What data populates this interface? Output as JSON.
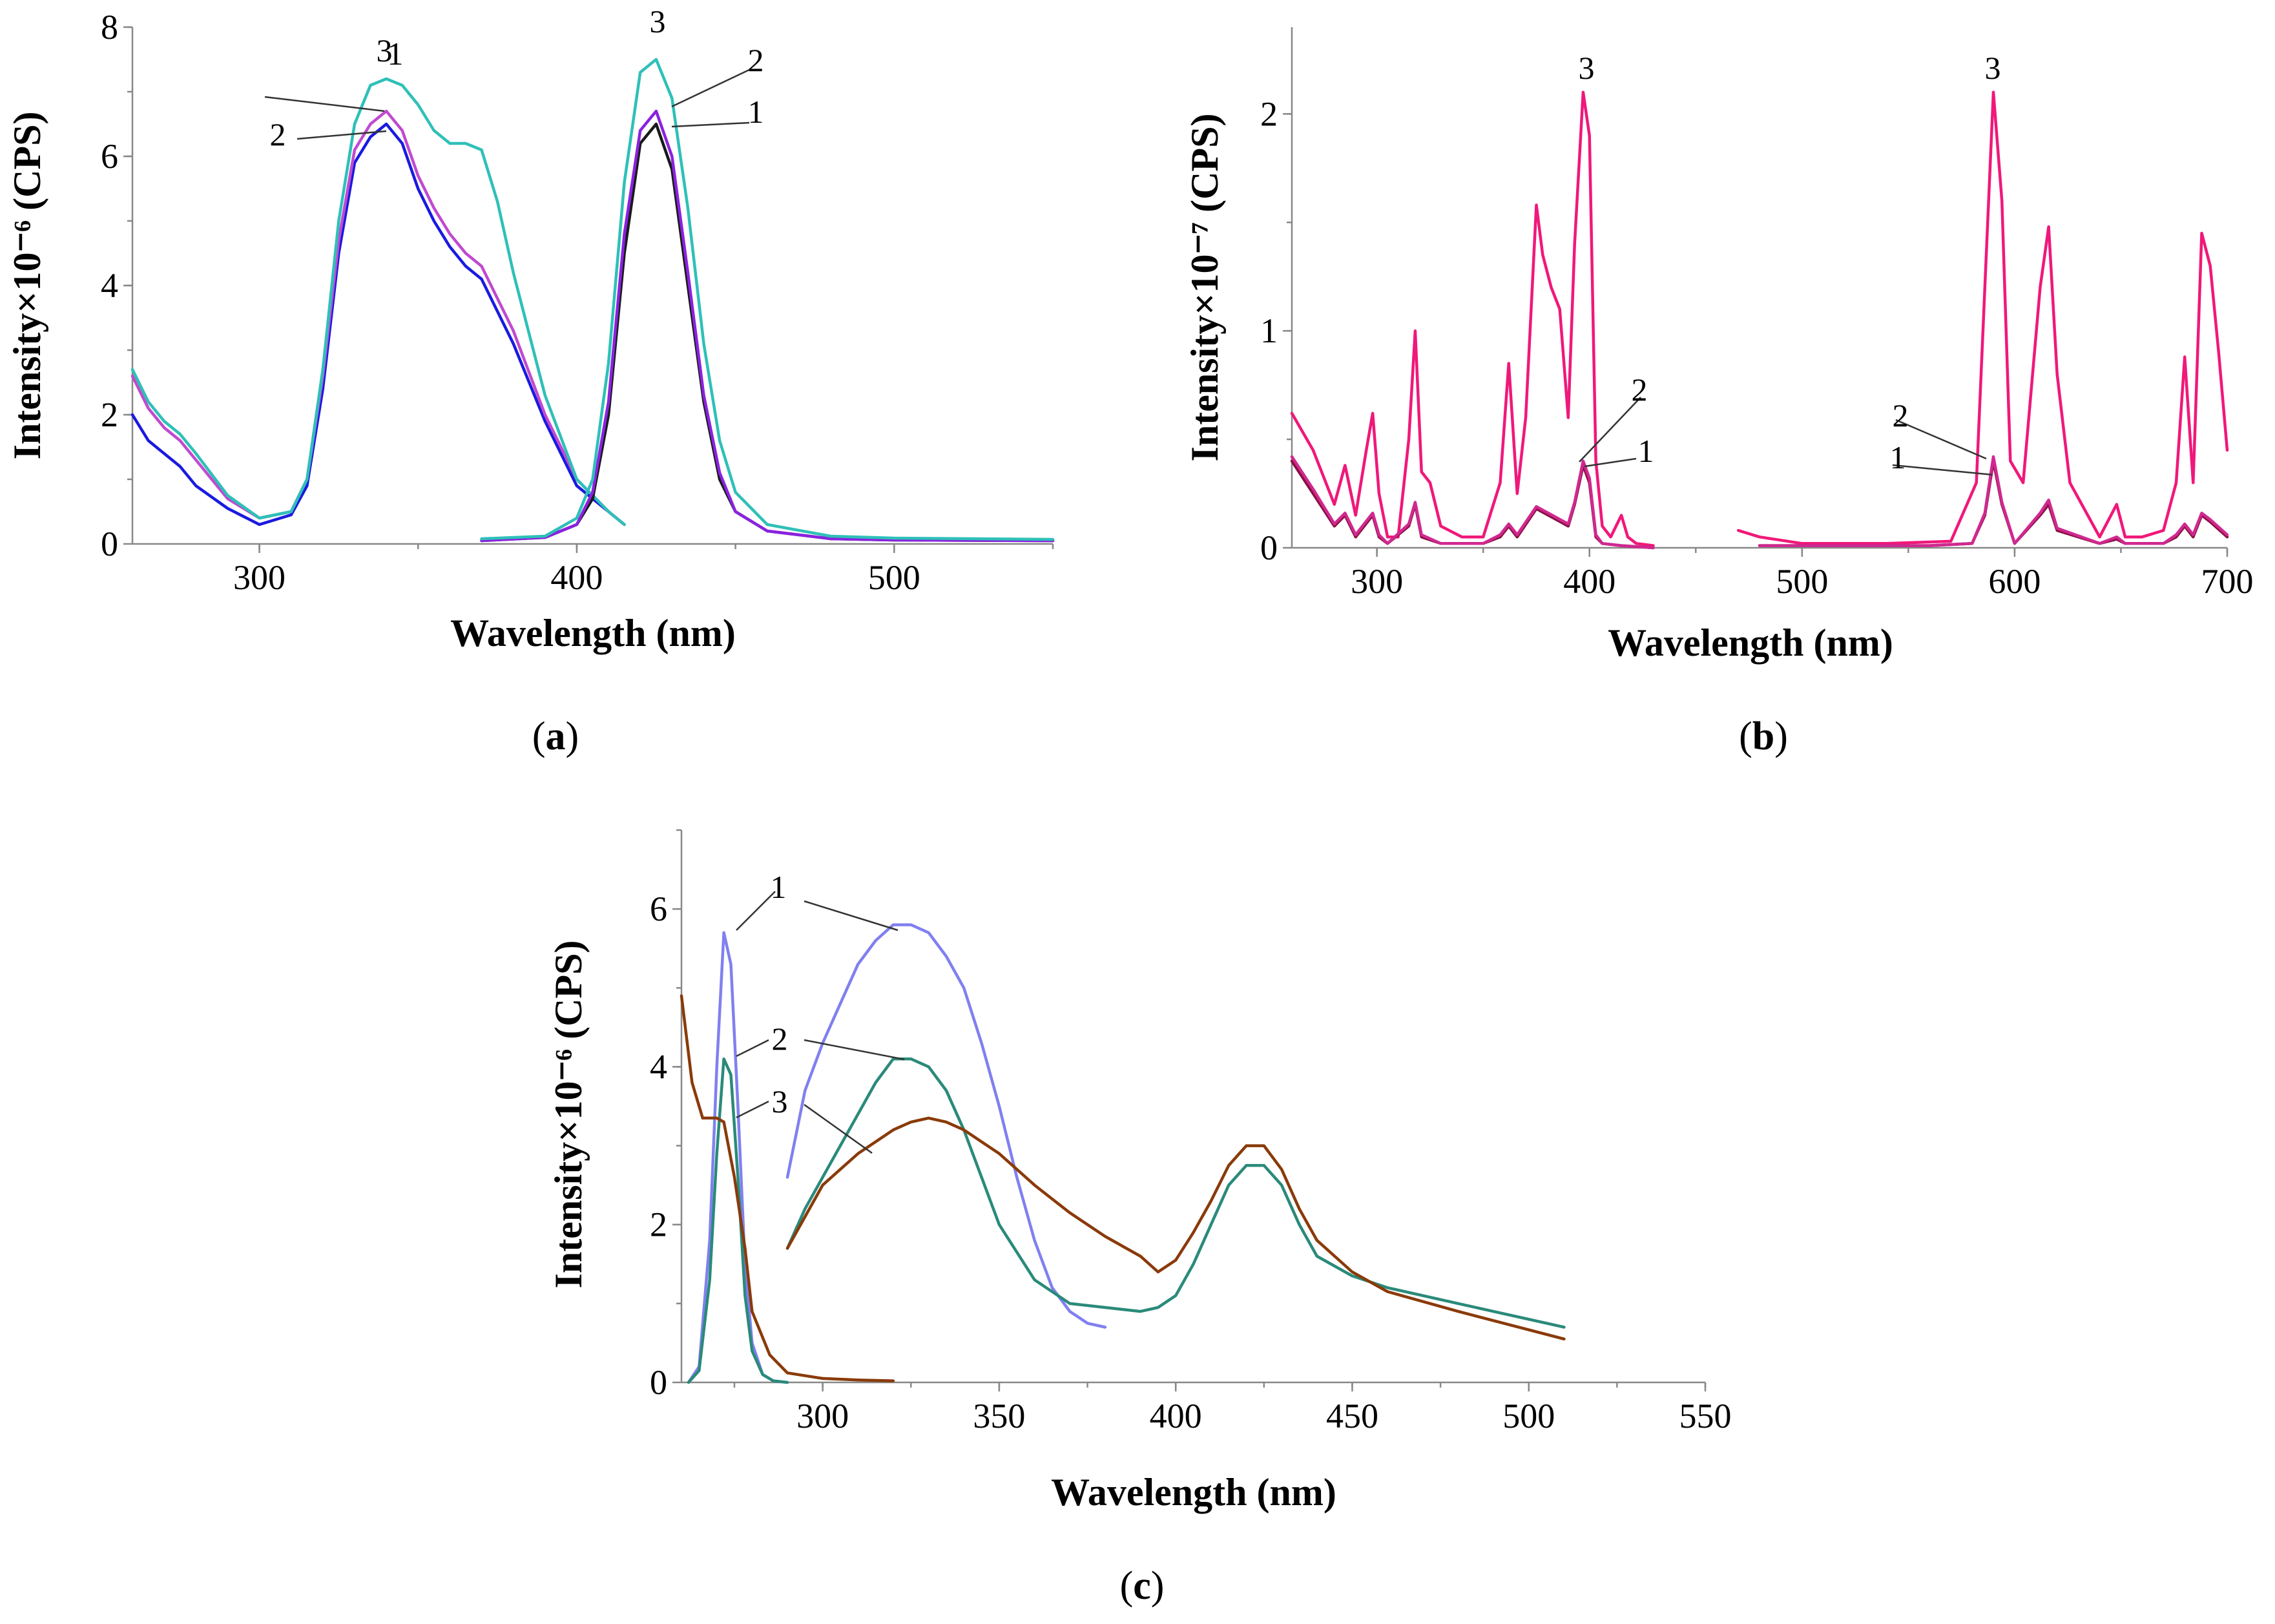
{
  "chart_data": [
    {
      "id": "a",
      "type": "line",
      "panel_label": "a",
      "xlabel": "Wavelength (nm)",
      "ylabel": "Intensity×10⁻⁶ (CPS)",
      "xlim": [
        260,
        550
      ],
      "ylim": [
        0,
        8
      ],
      "xticks": [
        300,
        400,
        500
      ],
      "yticks": [
        0,
        2,
        4,
        6,
        8
      ],
      "grid": false,
      "series": [
        {
          "name": "1",
          "color": "#1a1ae0",
          "x": [
            260,
            265,
            270,
            275,
            280,
            290,
            300,
            310,
            315,
            320,
            325,
            330,
            335,
            340,
            345,
            350,
            355,
            360,
            365,
            370,
            380,
            390,
            400,
            410,
            415
          ],
          "y": [
            2.0,
            1.6,
            1.4,
            1.2,
            0.9,
            0.55,
            0.3,
            0.45,
            0.9,
            2.4,
            4.5,
            5.9,
            6.3,
            6.5,
            6.2,
            5.5,
            5.0,
            4.6,
            4.3,
            4.1,
            3.1,
            1.9,
            0.9,
            0.5,
            0.3
          ]
        },
        {
          "name": "2",
          "color": "#c04ad0",
          "x": [
            260,
            265,
            270,
            275,
            280,
            290,
            300,
            310,
            315,
            320,
            325,
            330,
            335,
            340,
            345,
            350,
            355,
            360,
            365,
            370,
            380,
            390,
            400,
            410,
            415
          ],
          "y": [
            2.6,
            2.1,
            1.8,
            1.6,
            1.3,
            0.7,
            0.4,
            0.5,
            1.0,
            2.6,
            4.7,
            6.1,
            6.5,
            6.7,
            6.4,
            5.7,
            5.2,
            4.8,
            4.5,
            4.3,
            3.3,
            2.0,
            1.0,
            0.5,
            0.3
          ]
        },
        {
          "name": "3",
          "color": "#2ec0b8",
          "x": [
            260,
            265,
            270,
            275,
            280,
            290,
            300,
            310,
            315,
            320,
            325,
            330,
            335,
            340,
            345,
            350,
            355,
            360,
            365,
            370,
            375,
            380,
            390,
            400,
            410,
            415
          ],
          "y": [
            2.7,
            2.2,
            1.9,
            1.7,
            1.4,
            0.75,
            0.4,
            0.5,
            1.0,
            2.7,
            5.0,
            6.5,
            7.1,
            7.2,
            7.1,
            6.8,
            6.4,
            6.2,
            6.2,
            6.1,
            5.3,
            4.2,
            2.3,
            1.0,
            0.5,
            0.3
          ]
        },
        {
          "name": "1",
          "color": "#1a1a1a",
          "x": [
            370,
            390,
            400,
            405,
            410,
            415,
            420,
            425,
            430,
            435,
            440,
            445,
            450,
            460,
            480,
            500,
            550
          ],
          "y": [
            0.05,
            0.1,
            0.3,
            0.7,
            2.0,
            4.5,
            6.2,
            6.5,
            5.8,
            4.0,
            2.2,
            1.0,
            0.5,
            0.2,
            0.08,
            0.06,
            0.05
          ]
        },
        {
          "name": "2",
          "color": "#8a22e0",
          "x": [
            370,
            390,
            400,
            405,
            410,
            415,
            420,
            425,
            430,
            435,
            440,
            445,
            450,
            460,
            480,
            500,
            550
          ],
          "y": [
            0.05,
            0.1,
            0.3,
            0.8,
            2.2,
            4.8,
            6.4,
            6.7,
            6.0,
            4.2,
            2.3,
            1.1,
            0.5,
            0.2,
            0.08,
            0.06,
            0.05
          ]
        },
        {
          "name": "3",
          "color": "#2ec0b8",
          "x": [
            370,
            390,
            400,
            405,
            410,
            415,
            420,
            425,
            430,
            435,
            440,
            445,
            450,
            460,
            480,
            500,
            550
          ],
          "y": [
            0.08,
            0.12,
            0.4,
            1.0,
            2.8,
            5.6,
            7.3,
            7.5,
            6.9,
            5.2,
            3.1,
            1.6,
            0.8,
            0.3,
            0.12,
            0.09,
            0.07
          ]
        }
      ],
      "annotations": [
        "3",
        "2",
        "1",
        "3",
        "2",
        "1"
      ]
    },
    {
      "id": "b",
      "type": "line",
      "panel_label": "b",
      "xlabel": "Wavelength (nm)",
      "ylabel": "Intensity×10⁻⁷ (CPS)",
      "xlim": [
        260,
        700
      ],
      "ylim": [
        0,
        2.4
      ],
      "xticks": [
        300,
        400,
        500,
        600,
        700
      ],
      "yticks": [
        0,
        1,
        2
      ],
      "grid": false,
      "series": [
        {
          "name": "3",
          "color": "#f0187a",
          "x": [
            260,
            270,
            280,
            285,
            290,
            295,
            298,
            301,
            305,
            310,
            315,
            318,
            321,
            325,
            330,
            340,
            350,
            358,
            362,
            366,
            370,
            375,
            378,
            382,
            386,
            390,
            393,
            397,
            400,
            403,
            406,
            410,
            415,
            418,
            422,
            430
          ],
          "y": [
            0.62,
            0.45,
            0.2,
            0.38,
            0.15,
            0.45,
            0.62,
            0.25,
            0.05,
            0.05,
            0.5,
            1.0,
            0.35,
            0.3,
            0.1,
            0.05,
            0.05,
            0.3,
            0.85,
            0.25,
            0.6,
            1.58,
            1.35,
            1.2,
            1.1,
            0.6,
            1.4,
            2.1,
            1.9,
            0.4,
            0.1,
            0.05,
            0.15,
            0.05,
            0.02,
            0.01
          ]
        },
        {
          "name": "3",
          "color": "#f0187a",
          "x": [
            470,
            480,
            500,
            540,
            570,
            582,
            586,
            590,
            594,
            598,
            604,
            612,
            616,
            620,
            626,
            640,
            648,
            652,
            660,
            670,
            676,
            680,
            684,
            688,
            692,
            696,
            700
          ],
          "y": [
            0.08,
            0.05,
            0.02,
            0.02,
            0.03,
            0.3,
            1.2,
            2.1,
            1.6,
            0.4,
            0.3,
            1.2,
            1.48,
            0.8,
            0.3,
            0.05,
            0.2,
            0.05,
            0.05,
            0.08,
            0.3,
            0.88,
            0.3,
            1.45,
            1.3,
            0.9,
            0.45
          ]
        },
        {
          "name": "1",
          "color": "#8a1040",
          "x": [
            260,
            270,
            280,
            285,
            290,
            298,
            301,
            305,
            315,
            318,
            321,
            330,
            350,
            358,
            362,
            366,
            375,
            390,
            393,
            397,
            400,
            403,
            406,
            415,
            430
          ],
          "y": [
            0.4,
            0.25,
            0.1,
            0.15,
            0.05,
            0.15,
            0.05,
            0.02,
            0.1,
            0.2,
            0.05,
            0.02,
            0.02,
            0.05,
            0.1,
            0.05,
            0.18,
            0.1,
            0.2,
            0.38,
            0.3,
            0.05,
            0.02,
            0.01,
            0.0
          ]
        },
        {
          "name": "2",
          "color": "#d02890",
          "x": [
            260,
            270,
            280,
            285,
            290,
            298,
            301,
            305,
            315,
            318,
            321,
            330,
            350,
            358,
            362,
            366,
            375,
            390,
            393,
            397,
            400,
            403,
            406,
            415,
            430
          ],
          "y": [
            0.42,
            0.27,
            0.11,
            0.16,
            0.06,
            0.16,
            0.06,
            0.02,
            0.11,
            0.21,
            0.06,
            0.02,
            0.02,
            0.06,
            0.11,
            0.06,
            0.19,
            0.11,
            0.21,
            0.4,
            0.32,
            0.06,
            0.02,
            0.01,
            0.0
          ]
        },
        {
          "name": "1",
          "color": "#8a1040",
          "x": [
            480,
            560,
            580,
            586,
            590,
            594,
            600,
            612,
            616,
            620,
            640,
            648,
            652,
            670,
            676,
            680,
            684,
            688,
            692,
            700
          ],
          "y": [
            0.01,
            0.01,
            0.02,
            0.15,
            0.4,
            0.2,
            0.02,
            0.15,
            0.2,
            0.08,
            0.02,
            0.04,
            0.02,
            0.02,
            0.05,
            0.1,
            0.05,
            0.15,
            0.12,
            0.05
          ]
        },
        {
          "name": "2",
          "color": "#d02890",
          "x": [
            480,
            560,
            580,
            586,
            590,
            594,
            600,
            612,
            616,
            620,
            640,
            648,
            652,
            670,
            676,
            680,
            684,
            688,
            692,
            700
          ],
          "y": [
            0.01,
            0.01,
            0.02,
            0.16,
            0.42,
            0.21,
            0.02,
            0.16,
            0.22,
            0.09,
            0.02,
            0.05,
            0.02,
            0.02,
            0.06,
            0.11,
            0.06,
            0.16,
            0.13,
            0.06
          ]
        }
      ],
      "annotations": [
        "3",
        "2",
        "1",
        "3",
        "2",
        "1"
      ]
    },
    {
      "id": "c",
      "type": "line",
      "panel_label": "c",
      "xlabel": "Wavelength (nm)",
      "ylabel": "Intensity×10⁻⁶ (CPS)",
      "xlim": [
        260,
        550
      ],
      "ylim": [
        0,
        7
      ],
      "xticks": [
        300,
        350,
        400,
        450,
        500,
        550
      ],
      "yticks": [
        0,
        2,
        4,
        6
      ],
      "grid": false,
      "series": [
        {
          "name": "1",
          "color": "#8080f0",
          "x": [
            262,
            265,
            268,
            270,
            272,
            274,
            276,
            278,
            280,
            283,
            286,
            290
          ],
          "y": [
            0.0,
            0.2,
            1.8,
            4.0,
            5.7,
            5.3,
            3.5,
            1.5,
            0.5,
            0.1,
            0.02,
            0.0
          ]
        },
        {
          "name": "2",
          "color": "#2a8a7a",
          "x": [
            262,
            265,
            268,
            270,
            272,
            274,
            276,
            278,
            280,
            283,
            286,
            290
          ],
          "y": [
            0.0,
            0.15,
            1.3,
            2.9,
            4.1,
            3.9,
            2.6,
            1.1,
            0.4,
            0.1,
            0.02,
            0.0
          ]
        },
        {
          "name": "3",
          "color": "#8a3a0a",
          "x": [
            260,
            263,
            266,
            270,
            272,
            275,
            278,
            280,
            285,
            290,
            300,
            310,
            320
          ],
          "y": [
            4.9,
            3.8,
            3.35,
            3.35,
            3.3,
            2.6,
            1.7,
            0.9,
            0.35,
            0.12,
            0.05,
            0.03,
            0.02
          ]
        },
        {
          "name": "1",
          "color": "#8080f0",
          "x": [
            290,
            295,
            300,
            305,
            310,
            315,
            320,
            325,
            330,
            335,
            340,
            345,
            350,
            355,
            360,
            365,
            370,
            375,
            380
          ],
          "y": [
            2.6,
            3.7,
            4.3,
            4.8,
            5.3,
            5.6,
            5.8,
            5.8,
            5.7,
            5.4,
            5.0,
            4.3,
            3.5,
            2.6,
            1.8,
            1.2,
            0.9,
            0.75,
            0.7
          ]
        },
        {
          "name": "2",
          "color": "#2a8a7a",
          "x": [
            290,
            295,
            300,
            305,
            310,
            315,
            320,
            325,
            330,
            335,
            340,
            345,
            350,
            360,
            370,
            380,
            390,
            395,
            400,
            405,
            410,
            415,
            420,
            425,
            430,
            435,
            440,
            450,
            460,
            480,
            510
          ],
          "y": [
            1.7,
            2.2,
            2.6,
            3.0,
            3.4,
            3.8,
            4.1,
            4.1,
            4.0,
            3.7,
            3.2,
            2.6,
            2.0,
            1.3,
            1.0,
            0.95,
            0.9,
            0.95,
            1.1,
            1.5,
            2.0,
            2.5,
            2.75,
            2.75,
            2.5,
            2.0,
            1.6,
            1.35,
            1.2,
            1.0,
            0.7
          ]
        },
        {
          "name": "3",
          "color": "#8a3a0a",
          "x": [
            290,
            295,
            300,
            305,
            310,
            315,
            320,
            325,
            330,
            335,
            340,
            345,
            350,
            360,
            370,
            380,
            390,
            395,
            400,
            405,
            410,
            415,
            420,
            425,
            430,
            435,
            440,
            450,
            460,
            480,
            510
          ],
          "y": [
            1.7,
            2.1,
            2.5,
            2.7,
            2.9,
            3.05,
            3.2,
            3.3,
            3.35,
            3.3,
            3.2,
            3.05,
            2.9,
            2.5,
            2.15,
            1.85,
            1.6,
            1.4,
            1.55,
            1.9,
            2.3,
            2.75,
            3.0,
            3.0,
            2.7,
            2.2,
            1.8,
            1.4,
            1.15,
            0.9,
            0.55
          ]
        }
      ],
      "annotations": [
        "1",
        "2",
        "3"
      ]
    }
  ]
}
